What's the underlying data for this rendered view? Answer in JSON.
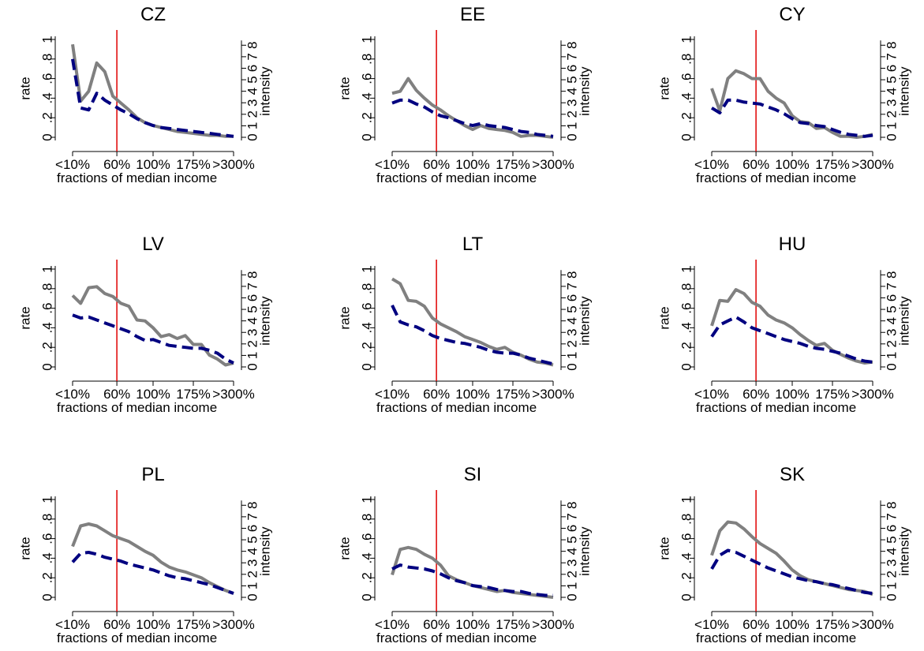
{
  "chart_data": {
    "type": "line",
    "xlabel": "fractions of median income",
    "ylabel_left": "rate",
    "ylabel_right": "intensity",
    "x_tick_labels": [
      "<10%",
      "60%",
      "100%",
      "175%",
      ">300%"
    ],
    "x_tick_positions": [
      0,
      5.5,
      10,
      15,
      20
    ],
    "x_range": [
      0,
      20
    ],
    "left_y_tick_labels": [
      "0",
      ".2",
      ".4",
      ".6",
      ".8",
      "1"
    ],
    "left_y_tick_values": [
      0,
      0.2,
      0.4,
      0.6,
      0.8,
      1.0
    ],
    "right_y_tick_labels": [
      "0",
      "1",
      "2",
      "3",
      "4",
      "5",
      "6",
      "7",
      "8"
    ],
    "right_y_tick_values": [
      0,
      1,
      2,
      3,
      4,
      5,
      6,
      7,
      8
    ],
    "y_range": [
      0,
      1.0
    ],
    "right_y_range": [
      0,
      8.5
    ],
    "reference_line_x": 5.5,
    "colors": {
      "rate": "#808080",
      "intensity": "#000080",
      "reference": "#e00000"
    },
    "panels": [
      {
        "title": "CZ",
        "series": [
          {
            "style": "solid-gray",
            "y": [
              0.95,
              0.37,
              0.47,
              0.76,
              0.67,
              0.42,
              0.35,
              0.28,
              0.2,
              0.15,
              0.12,
              0.1,
              0.08,
              0.06,
              0.05,
              0.04,
              0.03,
              0.02,
              0.02,
              0.01,
              0.01
            ]
          },
          {
            "style": "dashed-navy",
            "y": [
              0.8,
              0.3,
              0.28,
              0.45,
              0.38,
              0.33,
              0.28,
              0.24,
              0.19,
              0.15,
              0.12,
              0.1,
              0.09,
              0.08,
              0.07,
              0.06,
              0.05,
              0.04,
              0.03,
              0.02,
              0.01
            ]
          }
        ]
      },
      {
        "title": "EE",
        "series": [
          {
            "style": "solid-gray",
            "y": [
              0.45,
              0.47,
              0.6,
              0.48,
              0.4,
              0.33,
              0.28,
              0.22,
              0.17,
              0.12,
              0.08,
              0.12,
              0.09,
              0.08,
              0.07,
              0.05,
              0.01,
              0.02,
              0.02,
              0.01,
              0.0
            ]
          },
          {
            "style": "dashed-navy",
            "y": [
              0.35,
              0.38,
              0.38,
              0.34,
              0.31,
              0.26,
              0.22,
              0.2,
              0.17,
              0.14,
              0.12,
              0.14,
              0.12,
              0.11,
              0.1,
              0.08,
              0.06,
              0.05,
              0.03,
              0.02,
              0.01
            ]
          }
        ]
      },
      {
        "title": "CY",
        "series": [
          {
            "style": "solid-gray",
            "y": [
              0.5,
              0.27,
              0.6,
              0.68,
              0.65,
              0.6,
              0.6,
              0.47,
              0.4,
              0.35,
              0.22,
              0.16,
              0.15,
              0.09,
              0.1,
              0.05,
              0.01,
              0.01,
              0.0,
              0.01,
              0.03
            ]
          },
          {
            "style": "dashed-navy",
            "y": [
              0.3,
              0.25,
              0.38,
              0.38,
              0.36,
              0.35,
              0.34,
              0.31,
              0.28,
              0.24,
              0.19,
              0.15,
              0.14,
              0.12,
              0.11,
              0.08,
              0.05,
              0.03,
              0.02,
              0.01,
              0.02
            ]
          }
        ]
      },
      {
        "title": "LV",
        "series": [
          {
            "style": "solid-gray",
            "y": [
              0.73,
              0.65,
              0.81,
              0.82,
              0.75,
              0.72,
              0.65,
              0.62,
              0.48,
              0.47,
              0.4,
              0.31,
              0.33,
              0.29,
              0.32,
              0.23,
              0.23,
              0.12,
              0.08,
              0.02,
              0.04
            ]
          },
          {
            "style": "dashed-navy",
            "y": [
              0.53,
              0.5,
              0.51,
              0.48,
              0.45,
              0.42,
              0.39,
              0.36,
              0.31,
              0.27,
              0.28,
              0.25,
              0.22,
              0.21,
              0.2,
              0.19,
              0.19,
              0.17,
              0.14,
              0.08,
              0.04
            ]
          }
        ]
      },
      {
        "title": "LT",
        "series": [
          {
            "style": "solid-gray",
            "y": [
              0.9,
              0.85,
              0.68,
              0.67,
              0.62,
              0.5,
              0.44,
              0.4,
              0.36,
              0.31,
              0.28,
              0.25,
              0.21,
              0.18,
              0.2,
              0.15,
              0.12,
              0.08,
              0.05,
              0.04,
              0.02
            ]
          },
          {
            "style": "dashed-navy",
            "y": [
              0.63,
              0.46,
              0.43,
              0.41,
              0.37,
              0.32,
              0.29,
              0.27,
              0.25,
              0.24,
              0.22,
              0.2,
              0.17,
              0.15,
              0.14,
              0.14,
              0.12,
              0.09,
              0.07,
              0.05,
              0.03
            ]
          }
        ]
      },
      {
        "title": "HU",
        "series": [
          {
            "style": "solid-gray",
            "y": [
              0.42,
              0.68,
              0.67,
              0.79,
              0.75,
              0.66,
              0.62,
              0.53,
              0.48,
              0.45,
              0.4,
              0.33,
              0.27,
              0.22,
              0.24,
              0.17,
              0.13,
              0.09,
              0.06,
              0.04,
              0.05
            ]
          },
          {
            "style": "dashed-navy",
            "y": [
              0.31,
              0.43,
              0.47,
              0.51,
              0.46,
              0.4,
              0.37,
              0.34,
              0.31,
              0.28,
              0.26,
              0.24,
              0.21,
              0.19,
              0.18,
              0.16,
              0.14,
              0.11,
              0.08,
              0.06,
              0.05
            ]
          }
        ]
      },
      {
        "title": "PL",
        "series": [
          {
            "style": "solid-gray",
            "y": [
              0.52,
              0.73,
              0.75,
              0.73,
              0.68,
              0.63,
              0.6,
              0.57,
              0.52,
              0.47,
              0.43,
              0.36,
              0.31,
              0.28,
              0.26,
              0.23,
              0.2,
              0.15,
              0.11,
              0.07,
              0.04
            ]
          },
          {
            "style": "dashed-navy",
            "y": [
              0.36,
              0.45,
              0.46,
              0.44,
              0.41,
              0.39,
              0.37,
              0.34,
              0.32,
              0.3,
              0.28,
              0.25,
              0.22,
              0.2,
              0.19,
              0.17,
              0.15,
              0.13,
              0.1,
              0.07,
              0.04
            ]
          }
        ]
      },
      {
        "title": "SI",
        "series": [
          {
            "style": "solid-gray",
            "y": [
              0.23,
              0.49,
              0.51,
              0.49,
              0.44,
              0.4,
              0.33,
              0.22,
              0.18,
              0.15,
              0.12,
              0.1,
              0.08,
              0.06,
              0.07,
              0.05,
              0.04,
              0.03,
              0.02,
              0.01,
              0.0
            ]
          },
          {
            "style": "dashed-navy",
            "y": [
              0.29,
              0.33,
              0.31,
              0.3,
              0.29,
              0.27,
              0.24,
              0.2,
              0.17,
              0.15,
              0.12,
              0.11,
              0.1,
              0.08,
              0.07,
              0.06,
              0.06,
              0.04,
              0.03,
              0.02,
              0.02
            ]
          }
        ]
      },
      {
        "title": "SK",
        "series": [
          {
            "style": "solid-gray",
            "y": [
              0.43,
              0.68,
              0.77,
              0.76,
              0.7,
              0.62,
              0.55,
              0.5,
              0.45,
              0.37,
              0.28,
              0.22,
              0.18,
              0.16,
              0.14,
              0.12,
              0.1,
              0.08,
              0.07,
              0.06,
              0.03
            ]
          },
          {
            "style": "dashed-navy",
            "y": [
              0.29,
              0.43,
              0.48,
              0.46,
              0.42,
              0.38,
              0.34,
              0.3,
              0.27,
              0.24,
              0.21,
              0.19,
              0.17,
              0.16,
              0.14,
              0.13,
              0.11,
              0.09,
              0.07,
              0.05,
              0.04
            ]
          }
        ]
      }
    ]
  }
}
